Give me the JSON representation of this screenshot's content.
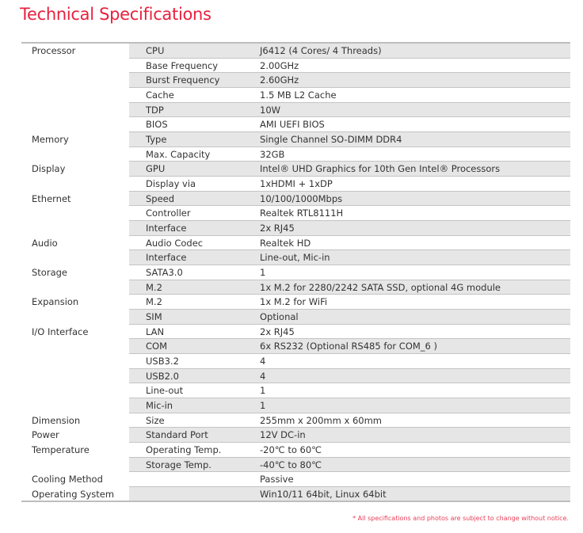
{
  "title": "Technical Specifications",
  "rows": [
    {
      "category": "Processor",
      "label": "CPU",
      "value": "J6412 (4 Cores/ 4 Threads)"
    },
    {
      "category": "",
      "label": "Base Frequency",
      "value": "2.00GHz"
    },
    {
      "category": "",
      "label": "Burst Frequency",
      "value": "2.60GHz"
    },
    {
      "category": "",
      "label": "Cache",
      "value": "1.5 MB L2 Cache"
    },
    {
      "category": "",
      "label": "TDP",
      "value": "10W"
    },
    {
      "category": "",
      "label": "BIOS",
      "value": "AMI UEFI BIOS"
    },
    {
      "category": "Memory",
      "label": "Type",
      "value": "Single Channel SO-DIMM DDR4"
    },
    {
      "category": "",
      "label": "Max. Capacity",
      "value": "32GB"
    },
    {
      "category": "Display",
      "label": "GPU",
      "value": "Intel® UHD Graphics for 10th Gen Intel® Processors"
    },
    {
      "category": "",
      "label": "Display via",
      "value": "1xHDMI + 1xDP"
    },
    {
      "category": "Ethernet",
      "label": "Speed",
      "value": "10/100/1000Mbps"
    },
    {
      "category": "",
      "label": "Controller",
      "value": "Realtek RTL8111H"
    },
    {
      "category": "",
      "label": "Interface",
      "value": "2x RJ45"
    },
    {
      "category": "Audio",
      "label": "Audio Codec",
      "value": "Realtek HD"
    },
    {
      "category": "",
      "label": "Interface",
      "value": "Line-out, Mic-in"
    },
    {
      "category": "Storage",
      "label": "SATA3.0",
      "value": "1"
    },
    {
      "category": "",
      "label": "M.2",
      "value": "1x M.2 for 2280/2242 SATA SSD, optional 4G module"
    },
    {
      "category": "Expansion",
      "label": "M.2",
      "value": "1x M.2 for WiFi"
    },
    {
      "category": "",
      "label": "SIM",
      "value": "Optional"
    },
    {
      "category": "I/O Interface",
      "label": "LAN",
      "value": "2x RJ45"
    },
    {
      "category": "",
      "label": "COM",
      "value": "6x RS232 (Optional RS485 for COM_6 )"
    },
    {
      "category": "",
      "label": "USB3.2",
      "value": "4"
    },
    {
      "category": "",
      "label": "USB2.0",
      "value": "4"
    },
    {
      "category": "",
      "label": "Line-out",
      "value": "1"
    },
    {
      "category": "",
      "label": "Mic-in",
      "value": "1"
    },
    {
      "category": "Dimension",
      "label": "Size",
      "value": "255mm x 200mm x 60mm"
    },
    {
      "category": "Power",
      "label": "Standard Port",
      "value": "12V DC-in"
    },
    {
      "category": "Temperature",
      "label": "Operating Temp.",
      "value": "-20℃ to 60℃"
    },
    {
      "category": "",
      "label": "Storage Temp.",
      "value": "-40℃ to 80℃"
    },
    {
      "category": "Cooling Method",
      "label": "",
      "value": "Passive"
    },
    {
      "category": "Operating System",
      "label": "",
      "value": "Win10/11 64bit, Linux 64bit"
    }
  ],
  "footnote": "* All specifications and photos are subject to change without notice.",
  "colors": {
    "accent": "#e8213f",
    "row_shade": "#e6e6e6"
  }
}
